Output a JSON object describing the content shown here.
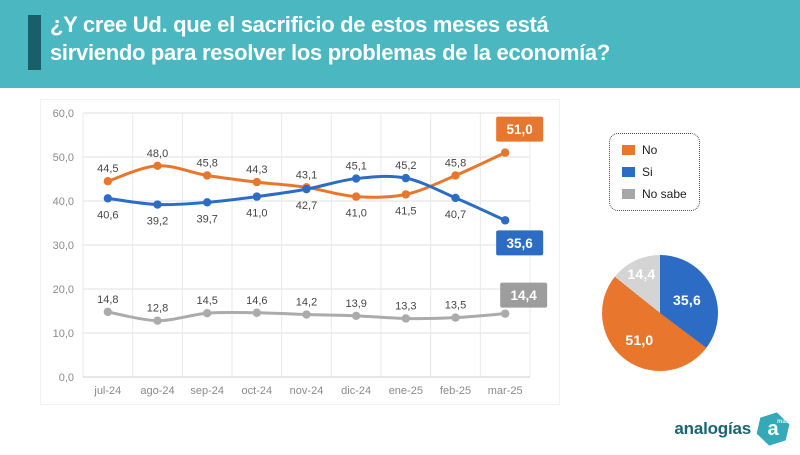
{
  "header": {
    "title_line1": "¿Y cree Ud. que el sacrificio de estos meses está",
    "title_line2": "sirviendo para resolver los problemas de la economía?",
    "bg_color": "#4AB7C1",
    "accent_color": "#1A5E68"
  },
  "chart_data": [
    {
      "type": "line",
      "categories": [
        "jul-24",
        "ago-24",
        "sep-24",
        "oct-24",
        "nov-24",
        "dic-24",
        "ene-25",
        "feb-25",
        "mar-25"
      ],
      "series": [
        {
          "name": "No",
          "color": "#E8772D",
          "badge_color": "#E8772D",
          "values": [
            44.5,
            48.0,
            45.8,
            44.3,
            43.1,
            41.0,
            41.5,
            45.8,
            51.0
          ]
        },
        {
          "name": "Si",
          "color": "#2D6CC4",
          "badge_color": "#2D6CC4",
          "values": [
            40.6,
            39.2,
            39.7,
            41.0,
            42.7,
            45.1,
            45.2,
            40.7,
            35.6
          ]
        },
        {
          "name": "No sabe",
          "color": "#ABABAB",
          "badge_color": "#9D9D9D",
          "values": [
            14.8,
            12.8,
            14.5,
            14.6,
            14.2,
            13.9,
            13.3,
            13.5,
            14.4
          ]
        }
      ],
      "ylim": [
        0,
        60
      ],
      "ytick_step": 10,
      "ytick_labels": [
        "0,0",
        "10,0",
        "20,0",
        "30,0",
        "40,0",
        "50,0",
        "60,0"
      ],
      "decimal_separator": ",",
      "grid": true,
      "legend_position": "right"
    },
    {
      "type": "pie",
      "start": "top",
      "direction": "clockwise",
      "slices": [
        {
          "label": "Si",
          "value": 35.6,
          "color": "#2D6CC4"
        },
        {
          "label": "No",
          "value": 51.0,
          "color": "#E8772D"
        },
        {
          "label": "No sabe",
          "value": 14.4,
          "color": "#D4D4D4"
        }
      ]
    }
  ],
  "legend": {
    "items": [
      {
        "label": "No",
        "color": "#E8772D"
      },
      {
        "label": "Si",
        "color": "#2D6CC4"
      },
      {
        "label": "No sabe",
        "color": "#A6A6A6"
      }
    ]
  },
  "logo": {
    "text": "analogías",
    "badge_letter": "a",
    "badge_super": "más",
    "text_color": "#1A6570",
    "badge_color": "#35A9B7"
  }
}
